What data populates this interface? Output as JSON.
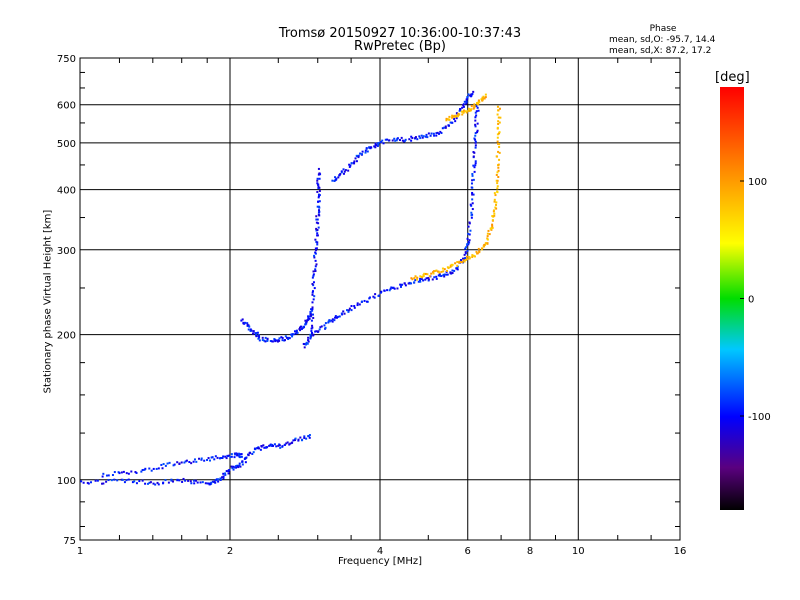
{
  "chart_data": {
    "type": "scatter",
    "title": "Tromsø 20150927 10:36:00-10:37:43",
    "subtitle": "RwPretec (Bp)",
    "xlabel": "Frequency [MHz]",
    "ylabel": "Stationary phase Virtual Height [km]",
    "x_scale": "log",
    "y_scale": "log",
    "xlim": [
      1,
      16
    ],
    "ylim": [
      75,
      750
    ],
    "x_ticks": [
      "1",
      "2",
      "4",
      "6",
      "8",
      "10",
      "16"
    ],
    "y_ticks": [
      "75",
      "100",
      "200",
      "300",
      "400",
      "500",
      "600",
      "750"
    ],
    "grid": true,
    "colorbar": {
      "label": "[deg]",
      "ticks": [
        "100",
        "0",
        "-100"
      ],
      "range": [
        -180,
        180
      ],
      "colormap": "rainbow"
    },
    "phase_stats": {
      "heading": "Phase",
      "o_line": "mean, sd,O: -95.7, 14.4",
      "x_line": "mean, sd,X:  87.2, 17.2"
    },
    "traces": [
      {
        "kind": "O-mode F layer",
        "phase_mean": -95.7,
        "points": [
          [
            1.0,
            99
          ],
          [
            1.2,
            100
          ],
          [
            1.4,
            99
          ],
          [
            1.6,
            100
          ],
          [
            1.8,
            99
          ],
          [
            1.9,
            100
          ],
          [
            2.0,
            106
          ],
          [
            2.1,
            108
          ],
          [
            2.2,
            115
          ],
          [
            2.35,
            118
          ],
          [
            2.5,
            118
          ],
          [
            2.7,
            121
          ],
          [
            2.9,
            124
          ]
        ]
      },
      {
        "kind": "O-mode E layer",
        "phase_mean": -95.7,
        "points": [
          [
            1.1,
            103
          ],
          [
            1.3,
            104
          ],
          [
            1.5,
            108
          ],
          [
            1.7,
            110
          ],
          [
            1.9,
            112
          ],
          [
            2.05,
            113
          ],
          [
            2.1,
            113
          ]
        ]
      },
      {
        "kind": "O-mode F1 trace",
        "phase_mean": -95.7,
        "points": [
          [
            2.1,
            215
          ],
          [
            2.2,
            205
          ],
          [
            2.3,
            197
          ],
          [
            2.45,
            195
          ],
          [
            2.6,
            198
          ],
          [
            2.75,
            205
          ],
          [
            2.85,
            215
          ],
          [
            2.9,
            225
          ]
        ]
      },
      {
        "kind": "O-mode F2 trace",
        "phase_mean": -95.7,
        "points": [
          [
            2.8,
            190
          ],
          [
            2.9,
            200
          ],
          [
            3.1,
            210
          ],
          [
            3.3,
            220
          ],
          [
            3.6,
            232
          ],
          [
            4.0,
            245
          ],
          [
            4.4,
            255
          ],
          [
            4.8,
            260
          ],
          [
            5.2,
            265
          ],
          [
            5.6,
            272
          ],
          [
            5.9,
            290
          ],
          [
            6.0,
            320
          ],
          [
            6.1,
            380
          ],
          [
            6.15,
            450
          ],
          [
            6.2,
            520
          ],
          [
            6.25,
            600
          ]
        ]
      },
      {
        "kind": "O-mode upper branch",
        "phase_mean": -95.7,
        "points": [
          [
            3.2,
            420
          ],
          [
            3.4,
            440
          ],
          [
            3.6,
            470
          ],
          [
            3.8,
            490
          ],
          [
            4.0,
            505
          ],
          [
            4.4,
            510
          ],
          [
            4.8,
            515
          ],
          [
            5.2,
            525
          ],
          [
            5.6,
            560
          ],
          [
            5.9,
            610
          ],
          [
            6.1,
            640
          ]
        ]
      },
      {
        "kind": "X-mode trace",
        "phase_mean": 87.2,
        "points": [
          [
            4.6,
            262
          ],
          [
            5.0,
            268
          ],
          [
            5.4,
            275
          ],
          [
            5.8,
            285
          ],
          [
            6.2,
            295
          ],
          [
            6.5,
            310
          ],
          [
            6.7,
            340
          ],
          [
            6.8,
            380
          ],
          [
            6.85,
            440
          ],
          [
            6.9,
            520
          ],
          [
            6.9,
            600
          ]
        ]
      },
      {
        "kind": "X-mode upper branch",
        "phase_mean": 87.2,
        "points": [
          [
            5.4,
            560
          ],
          [
            5.7,
            575
          ],
          [
            6.0,
            590
          ],
          [
            6.3,
            610
          ],
          [
            6.5,
            630
          ]
        ]
      },
      {
        "kind": "vertical spread near 3 MHz",
        "phase_mean": -100,
        "points": [
          [
            2.9,
            200
          ],
          [
            2.92,
            240
          ],
          [
            2.95,
            280
          ],
          [
            2.97,
            320
          ],
          [
            2.99,
            360
          ],
          [
            3.0,
            400
          ],
          [
            3.0,
            440
          ]
        ]
      }
    ]
  }
}
